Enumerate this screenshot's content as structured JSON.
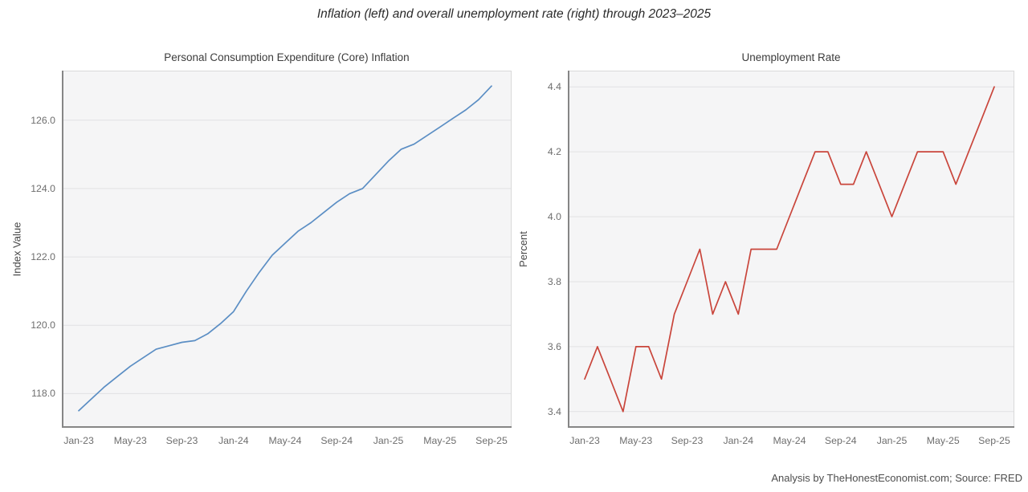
{
  "page": {
    "suptitle": "Inflation (left) and overall unemployment rate (right) through 2023–2025",
    "footer": "Analysis by TheHonestEconomist.com; Source: FRED"
  },
  "colors": {
    "plot_bg": "#f5f5f6",
    "grid": "#e2e2e4",
    "spine_dark": "#868686",
    "spine_light": "#d9d9d9",
    "inflation_line": "#5b8ec4",
    "unemployment_line": "#c9453b"
  },
  "chart_data": [
    {
      "type": "line",
      "title": "Personal Consumption Expenditure (Core) Inflation",
      "xlabel": "",
      "ylabel": "Index Value",
      "legend": "none",
      "grid": "horizontal",
      "line_color": "#5b8ec4",
      "ylim": [
        117.0,
        127.45
      ],
      "yticks": [
        118.0,
        120.0,
        122.0,
        124.0,
        126.0
      ],
      "ytick_labels": [
        "118.0",
        "120.0",
        "122.0",
        "124.0",
        "126.0"
      ],
      "xtick_positions": [
        0,
        4,
        8,
        12,
        16,
        20,
        24,
        28,
        32
      ],
      "xtick_labels": [
        "Jan-23",
        "May-23",
        "Sep-23",
        "Jan-24",
        "May-24",
        "Sep-24",
        "Jan-25",
        "May-25",
        "Sep-25"
      ],
      "categories": [
        "Jan-23",
        "Feb-23",
        "Mar-23",
        "Apr-23",
        "May-23",
        "Jun-23",
        "Jul-23",
        "Aug-23",
        "Sep-23",
        "Oct-23",
        "Nov-23",
        "Dec-23",
        "Jan-24",
        "Feb-24",
        "Mar-24",
        "Apr-24",
        "May-24",
        "Jun-24",
        "Jul-24",
        "Aug-24",
        "Sep-24",
        "Oct-24",
        "Nov-24",
        "Dec-24",
        "Jan-25",
        "Feb-25",
        "Mar-25",
        "Apr-25",
        "May-25",
        "Jun-25",
        "Jul-25",
        "Aug-25",
        "Sep-25"
      ],
      "values": [
        117.5,
        117.85,
        118.2,
        118.5,
        118.8,
        119.05,
        119.3,
        119.4,
        119.5,
        119.55,
        119.75,
        120.05,
        120.4,
        121.0,
        121.55,
        122.05,
        122.4,
        122.75,
        123.0,
        123.3,
        123.6,
        123.85,
        124.0,
        124.4,
        124.8,
        125.15,
        125.3,
        125.55,
        125.8,
        126.05,
        126.3,
        126.6,
        127.0
      ]
    },
    {
      "type": "line",
      "title": "Unemployment Rate",
      "xlabel": "",
      "ylabel": "Percent",
      "legend": "none",
      "grid": "horizontal",
      "line_color": "#c9453b",
      "ylim": [
        3.35,
        4.45
      ],
      "yticks": [
        3.4,
        3.6,
        3.8,
        4.0,
        4.2,
        4.4
      ],
      "ytick_labels": [
        "3.4",
        "3.6",
        "3.8",
        "4.0",
        "4.2",
        "4.4"
      ],
      "xtick_positions": [
        0,
        4,
        8,
        12,
        16,
        20,
        24,
        28,
        32
      ],
      "xtick_labels": [
        "Jan-23",
        "May-23",
        "Sep-23",
        "Jan-24",
        "May-24",
        "Sep-24",
        "Jan-25",
        "May-25",
        "Sep-25"
      ],
      "categories": [
        "Jan-23",
        "Feb-23",
        "Mar-23",
        "Apr-23",
        "May-23",
        "Jun-23",
        "Jul-23",
        "Aug-23",
        "Sep-23",
        "Oct-23",
        "Nov-23",
        "Dec-23",
        "Jan-24",
        "Feb-24",
        "Mar-24",
        "Apr-24",
        "May-24",
        "Jun-24",
        "Jul-24",
        "Aug-24",
        "Sep-24",
        "Oct-24",
        "Nov-24",
        "Dec-24",
        "Jan-25",
        "Feb-25",
        "Mar-25",
        "Apr-25",
        "May-25",
        "Jun-25",
        "Jul-25",
        "Aug-25",
        "Sep-25"
      ],
      "values": [
        3.5,
        3.6,
        3.5,
        3.4,
        3.6,
        3.6,
        3.5,
        3.7,
        3.8,
        3.9,
        3.7,
        3.8,
        3.7,
        3.9,
        3.9,
        3.9,
        4.0,
        4.1,
        4.2,
        4.2,
        4.1,
        4.1,
        4.2,
        4.1,
        4.0,
        4.1,
        4.2,
        4.2,
        4.2,
        4.1,
        4.2,
        4.3,
        4.4
      ]
    }
  ]
}
